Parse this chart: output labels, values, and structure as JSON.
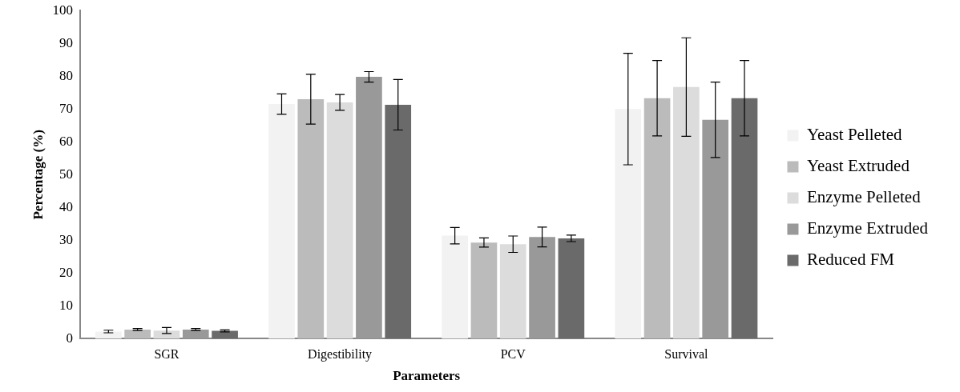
{
  "chart_data": {
    "type": "bar",
    "xlabel": "Parameters",
    "ylabel": "Percentage (%)",
    "categories": [
      "SGR",
      "Digestibility",
      "PCV",
      "Survival"
    ],
    "series": [
      {
        "name": "Yeast Pelleted",
        "color": "#f2f2f2",
        "values": [
          2.2,
          71.5,
          31.4,
          70.0
        ],
        "errors": [
          0.4,
          3.1,
          2.5,
          17.0
        ]
      },
      {
        "name": "Yeast Extruded",
        "color": "#bbbbbb",
        "values": [
          2.8,
          73.0,
          29.3,
          73.3
        ],
        "errors": [
          0.3,
          7.6,
          1.4,
          11.5
        ]
      },
      {
        "name": "Enzyme Pelleted",
        "color": "#dcdcdc",
        "values": [
          2.5,
          72.0,
          28.8,
          76.7
        ],
        "errors": [
          0.9,
          2.4,
          2.5,
          15.0
        ]
      },
      {
        "name": "Enzyme Extruded",
        "color": "#999999",
        "values": [
          2.8,
          79.8,
          31.0,
          66.7
        ],
        "errors": [
          0.3,
          1.6,
          3.0,
          11.5
        ]
      },
      {
        "name": "Reduced FM",
        "color": "#6a6a6a",
        "values": [
          2.4,
          71.3,
          30.6,
          73.3
        ],
        "errors": [
          0.3,
          7.7,
          1.0,
          11.5
        ]
      }
    ],
    "ylim": [
      0,
      100
    ],
    "yticks": [
      0,
      10,
      20,
      30,
      40,
      50,
      60,
      70,
      80,
      90,
      100
    ],
    "grid": false,
    "legend": "right"
  }
}
